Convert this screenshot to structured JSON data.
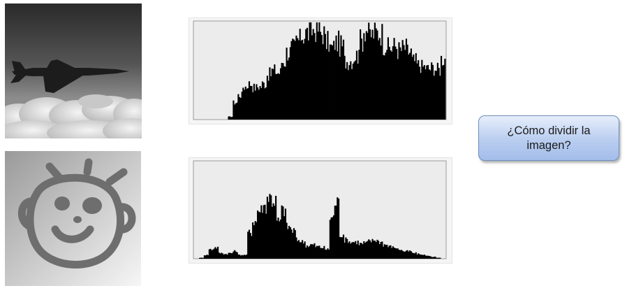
{
  "question": {
    "text": "¿Cómo dividir la imagen?"
  },
  "images": [
    {
      "icon": "airplane-photo"
    },
    {
      "icon": "smiley-face-photo"
    }
  ],
  "colors": {
    "histogram_fill": "#000000",
    "histogram_bg": "#ececec",
    "histogram_border": "#9a9a9a",
    "box_border": "#6f8fb8",
    "box_fill_top": "#e6eefb",
    "box_fill_bottom": "#a3bdea"
  },
  "chart_data": [
    {
      "type": "area",
      "x": [
        0,
        5,
        10,
        15,
        20,
        25,
        30,
        35,
        40,
        45,
        50,
        55,
        60,
        65,
        70,
        75,
        80,
        85,
        90,
        95,
        100,
        105,
        110,
        115,
        120,
        125,
        130,
        135,
        140,
        145,
        150,
        155,
        160,
        165,
        170,
        175,
        180,
        185,
        190,
        195,
        200,
        205,
        210,
        215,
        220,
        225,
        230,
        235,
        240,
        245,
        250,
        255
      ],
      "values": [
        0,
        0,
        0,
        0,
        0,
        0,
        0,
        3,
        18,
        26,
        35,
        38,
        34,
        35,
        38,
        48,
        52,
        50,
        62,
        72,
        76,
        84,
        90,
        92,
        95,
        96,
        92,
        82,
        76,
        82,
        78,
        62,
        63,
        68,
        84,
        96,
        90,
        92,
        92,
        80,
        76,
        78,
        74,
        76,
        72,
        62,
        58,
        56,
        54,
        55,
        53,
        65
      ],
      "xlim": [
        0,
        255
      ],
      "ylim": [
        0,
        100
      ]
    },
    {
      "type": "area",
      "x": [
        0,
        5,
        10,
        15,
        20,
        25,
        30,
        35,
        40,
        45,
        50,
        55,
        60,
        65,
        70,
        75,
        80,
        85,
        90,
        95,
        100,
        105,
        110,
        115,
        120,
        125,
        130,
        135,
        140,
        145,
        150,
        155,
        160,
        165,
        170,
        175,
        180,
        185,
        190,
        195,
        200,
        205,
        210,
        215,
        220,
        225,
        230,
        235,
        240,
        245,
        250,
        255
      ],
      "values": [
        0,
        1,
        4,
        10,
        12,
        6,
        5,
        6,
        8,
        4,
        4,
        28,
        40,
        52,
        56,
        66,
        62,
        40,
        52,
        34,
        30,
        20,
        18,
        14,
        15,
        13,
        12,
        10,
        44,
        60,
        26,
        20,
        18,
        18,
        16,
        17,
        19,
        20,
        18,
        15,
        13,
        12,
        10,
        8,
        8,
        6,
        5,
        4,
        3,
        2,
        1,
        0
      ],
      "xlim": [
        0,
        255
      ],
      "ylim": [
        0,
        100
      ]
    }
  ]
}
